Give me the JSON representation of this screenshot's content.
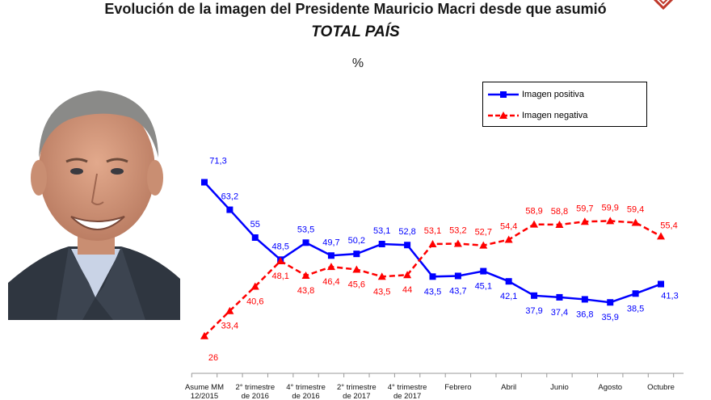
{
  "title": "Evolución de la imagen del Presidente Mauricio Macri desde que asumió",
  "subtitle": "TOTAL PAÍS",
  "unit": "%",
  "colors": {
    "positive": "#0000ff",
    "negative": "#ff0000",
    "logo": "#c0392b"
  },
  "chart_data": {
    "type": "line",
    "x": [
      "Asume MM 12/2015",
      "",
      "2° trimestre de 2016",
      "",
      "4° trimestre de 2016",
      "",
      "2° trimestre de 2017",
      "",
      "4° trimestre de 2017",
      "",
      "Febrero",
      "",
      "Abril",
      "",
      "Junio",
      "",
      "Agosto",
      "",
      "Octubre"
    ],
    "series": [
      {
        "name": "Imagen positiva",
        "color": "#0000ff",
        "marker": "square",
        "dash": "solid",
        "values": [
          71.3,
          63.2,
          55,
          48.5,
          53.5,
          49.7,
          50.2,
          53.1,
          52.8,
          43.5,
          43.7,
          45.1,
          42.1,
          37.9,
          37.4,
          36.8,
          35.9,
          38.5,
          41.3
        ]
      },
      {
        "name": "Imagen negativa",
        "color": "#ff0000",
        "marker": "triangle",
        "dash": "dashed",
        "values": [
          26,
          33.4,
          40.6,
          48.1,
          43.8,
          46.4,
          45.6,
          43.5,
          44,
          53.1,
          53.2,
          52.7,
          54.4,
          58.9,
          58.8,
          59.7,
          59.9,
          59.4,
          55.4
        ]
      }
    ],
    "ylim": [
      20,
      75
    ],
    "grid": false,
    "legend": "top-right"
  }
}
